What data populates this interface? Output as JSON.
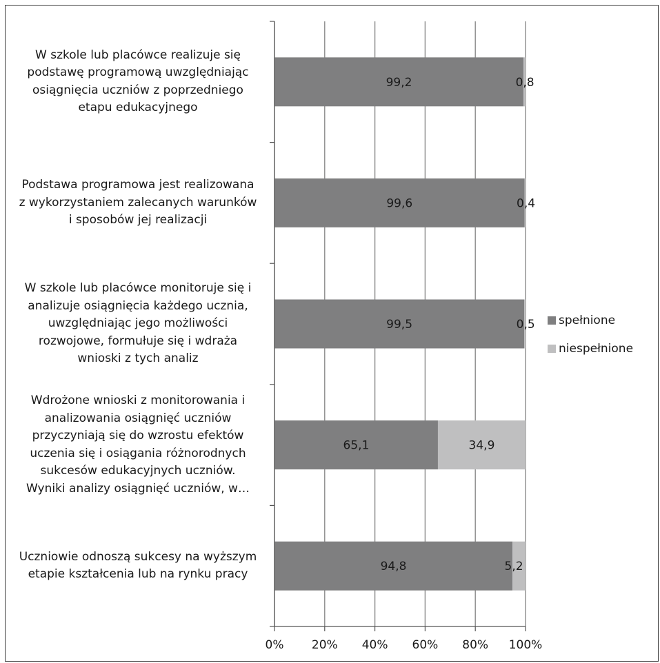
{
  "chart_data": {
    "type": "bar",
    "orientation": "horizontal",
    "stacked": true,
    "categories": [
      "W szkole lub placówce realizuje się\npodstawę programową uwzględniając\nosiągnięcia uczniów z poprzedniego\netapu edukacyjnego",
      "Podstawa programowa jest realizowana\nz wykorzystaniem zalecanych warunków\ni sposobów jej realizacji",
      "W szkole lub placówce monitoruje się i\nanalizuje osiągnięcia każdego ucznia,\nuwzględniając jego możliwości\nrozwojowe, formułuje się i wdraża\nwnioski z tych analiz",
      "Wdrożone wnioski z monitorowania i\nanalizowania osiągnięć uczniów\nprzyczyniają się do wzrostu efektów\nuczenia się i osiągania różnorodnych\nsukcesów edukacyjnych uczniów.\nWyniki analizy osiągnięć uczniów, w…",
      "Uczniowie odnoszą sukcesy na wyższym\netapie kształcenia lub na rynku pracy"
    ],
    "series": [
      {
        "name": "spełnione",
        "color": "#7f7f80",
        "values": [
          99.2,
          99.6,
          99.5,
          65.1,
          94.8
        ],
        "labels": [
          "99,2",
          "99,6",
          "99,5",
          "65,1",
          "94,8"
        ]
      },
      {
        "name": "niespełnione",
        "color": "#bfbfc0",
        "values": [
          0.8,
          0.4,
          0.5,
          34.9,
          5.2
        ],
        "labels": [
          "0,8",
          "0,4",
          "0,5",
          "34,9",
          "5,2"
        ]
      }
    ],
    "xlim": [
      0,
      100
    ],
    "x_ticks": [
      "0%",
      "20%",
      "40%",
      "60%",
      "80%",
      "100%"
    ],
    "grid": true,
    "legend_position": "right"
  }
}
